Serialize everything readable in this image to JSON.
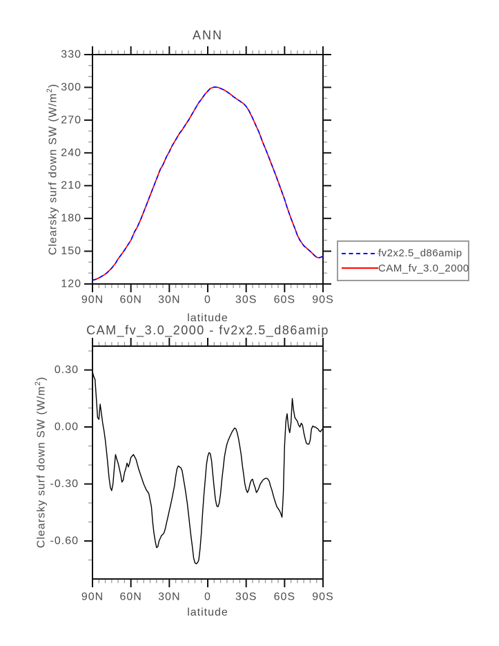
{
  "page": {
    "background": "#ffffff"
  },
  "colors": {
    "frame": "#111111",
    "major_tick": "#111111",
    "minor_tick": "#999999",
    "text": "#4d4d4d",
    "series_fv2x25": "#0000ff",
    "series_cam": "#ff0000",
    "difference_line": "#000000",
    "legend_border": "#9a9a9a"
  },
  "labels": {
    "ylabel_prefix": "Clearsky surf down SW (W/m",
    "ylabel_sup": "2",
    "ylabel_suffix": ")"
  },
  "legend": {
    "items": [
      {
        "label": "fv2x2.5_d86amip",
        "color": "#0000ff",
        "style": "dashed"
      },
      {
        "label": "CAM_fv_3.0_2000",
        "color": "#ff0000",
        "style": "solid"
      }
    ]
  },
  "chart_data": [
    {
      "type": "line",
      "title": "ANN",
      "xlabel": "latitude",
      "ylabel": "Clearsky surf down SW (W/m2)",
      "legend_position": "outside right, below plot middle",
      "grid": false,
      "x_axis": {
        "orientation": "90N at left, 90S at right",
        "tick_values": [
          90,
          60,
          30,
          0,
          -30,
          -60,
          -90
        ],
        "tick_labels": [
          "90N",
          "60N",
          "30N",
          "0",
          "30S",
          "60S",
          "90S"
        ],
        "minor_step_deg": 5
      },
      "y_axis": {
        "range": [
          120,
          330
        ],
        "tick_values": [
          330,
          300,
          270,
          240,
          210,
          180,
          150,
          120
        ],
        "tick_labels": [
          "330",
          "300",
          "270",
          "240",
          "210",
          "180",
          "150",
          "120"
        ],
        "minor_step": 10
      },
      "x": [
        90,
        88,
        85,
        82,
        80,
        78,
        75,
        72,
        70,
        68,
        65,
        62,
        60,
        57,
        55,
        52,
        50,
        47,
        45,
        42,
        40,
        37,
        35,
        32,
        30,
        28,
        25,
        22,
        20,
        17,
        15,
        12,
        10,
        7,
        5,
        2,
        0,
        -2,
        -5,
        -8,
        -10,
        -13,
        -15,
        -18,
        -20,
        -23,
        -25,
        -28,
        -30,
        -32,
        -35,
        -38,
        -40,
        -43,
        -45,
        -48,
        -50,
        -53,
        -55,
        -58,
        -60,
        -62,
        -65,
        -68,
        -70,
        -72,
        -75,
        -78,
        -80,
        -83,
        -85,
        -87,
        -89,
        -90
      ],
      "series": [
        {
          "name": "fv2x2.5_d86amip",
          "color": "#0000ff",
          "style": "dashed",
          "values": [
            123.5,
            124,
            125.5,
            127.5,
            129,
            131,
            134.5,
            139,
            143,
            146,
            151,
            156.5,
            160,
            168,
            172,
            180,
            186,
            195,
            201,
            210,
            216,
            225,
            229,
            237,
            241,
            246,
            252,
            258,
            261,
            266.5,
            270,
            276,
            280,
            286,
            289,
            294,
            296.5,
            299,
            300.3,
            300,
            299,
            297.5,
            296,
            293.5,
            291.5,
            289,
            287.5,
            285,
            282.5,
            279,
            272,
            264,
            259,
            249.5,
            244,
            235,
            229,
            220,
            213.5,
            204,
            197.5,
            190,
            180,
            171,
            164.5,
            160,
            155,
            152,
            150,
            146.5,
            144.5,
            144,
            144.8,
            145.5
          ]
        },
        {
          "name": "CAM_fv_3.0_2000",
          "color": "#ff0000",
          "style": "solid",
          "values": [
            123.5,
            124,
            125.5,
            127.5,
            129,
            131,
            134.5,
            139,
            143,
            146,
            151,
            156.5,
            160,
            168,
            172,
            180,
            186,
            195,
            201,
            210,
            216,
            225,
            229,
            237,
            241,
            246,
            252,
            258,
            261,
            266.5,
            270,
            276,
            280,
            286,
            289,
            294,
            296.5,
            299,
            300.3,
            300,
            299,
            297.5,
            296,
            293.5,
            291.5,
            289,
            287.5,
            285,
            282.5,
            279,
            272,
            264,
            259,
            249.5,
            244,
            235,
            229,
            220,
            213.5,
            204,
            197.5,
            190,
            180,
            171,
            164.5,
            160,
            155,
            152,
            150,
            146.5,
            144.5,
            144,
            144.8,
            145.5
          ]
        }
      ]
    },
    {
      "type": "line",
      "title": "CAM_fv_3.0_2000 - fv2x2.5_d86amip",
      "xlabel": "latitude",
      "ylabel": "Clearsky surf down SW (W/m2)",
      "grid": false,
      "x_axis": {
        "orientation": "90N at left, 90S at right",
        "tick_values": [
          90,
          60,
          30,
          0,
          -30,
          -60,
          -90
        ],
        "tick_labels": [
          "90N",
          "60N",
          "30N",
          "0",
          "30S",
          "60S",
          "90S"
        ],
        "minor_step_deg": 5
      },
      "y_axis": {
        "range_shown": [
          -0.8,
          0.43
        ],
        "tick_values": [
          0.3,
          0.0,
          -0.3,
          -0.6
        ],
        "tick_labels": [
          "0.30",
          "0.00",
          "-0.30",
          "-0.60"
        ],
        "minor_step": 0.1
      },
      "x": [
        90,
        89,
        88,
        87,
        86,
        85,
        84,
        83,
        82,
        81,
        80,
        79,
        78,
        77,
        76,
        75,
        74,
        73,
        72,
        71,
        70,
        69,
        68,
        67,
        66,
        65,
        64,
        63,
        62,
        61,
        60,
        58,
        56,
        54,
        52,
        50,
        48,
        46,
        44,
        43,
        42,
        41,
        40,
        39,
        38,
        37,
        36,
        35,
        34,
        33,
        32,
        31,
        30,
        29,
        28,
        27,
        26,
        25,
        24,
        23,
        22,
        21,
        20,
        19,
        18,
        17,
        16,
        15,
        14,
        13,
        12,
        11,
        10,
        9,
        8,
        7,
        6,
        5,
        4,
        3,
        2,
        1,
        0,
        -1,
        -2,
        -3,
        -4,
        -5,
        -6,
        -7,
        -8,
        -9,
        -10,
        -11,
        -12,
        -13,
        -14,
        -15,
        -16,
        -17,
        -18,
        -19,
        -20,
        -21,
        -22,
        -23,
        -24,
        -25,
        -26,
        -27,
        -28,
        -29,
        -30,
        -31,
        -32,
        -33,
        -34,
        -35,
        -36,
        -37,
        -38,
        -39,
        -40,
        -41,
        -42,
        -43,
        -44,
        -45,
        -46,
        -47,
        -48,
        -49,
        -50,
        -51,
        -52,
        -53,
        -54,
        -55,
        -56,
        -57,
        -58,
        -59,
        -60,
        -61,
        -62,
        -63,
        -64,
        -65,
        -66,
        -67,
        -68,
        -69,
        -70,
        -71,
        -72,
        -73,
        -74,
        -75,
        -76,
        -77,
        -78,
        -79,
        -80,
        -81,
        -82,
        -83,
        -84,
        -85,
        -86,
        -87,
        -88,
        -89,
        -90
      ],
      "series": [
        {
          "name": "CAM_fv_3.0_2000 minus fv2x2.5_d86amip",
          "color": "#000000",
          "style": "solid",
          "values": [
            0.29,
            0.265,
            0.25,
            0.15,
            0.05,
            0.04,
            0.12,
            0.07,
            0.02,
            -0.02,
            -0.07,
            -0.13,
            -0.2,
            -0.27,
            -0.32,
            -0.335,
            -0.3,
            -0.22,
            -0.145,
            -0.17,
            -0.19,
            -0.22,
            -0.25,
            -0.29,
            -0.28,
            -0.24,
            -0.22,
            -0.19,
            -0.21,
            -0.19,
            -0.16,
            -0.145,
            -0.17,
            -0.22,
            -0.26,
            -0.3,
            -0.33,
            -0.35,
            -0.42,
            -0.5,
            -0.56,
            -0.6,
            -0.635,
            -0.63,
            -0.6,
            -0.585,
            -0.57,
            -0.565,
            -0.555,
            -0.53,
            -0.5,
            -0.47,
            -0.44,
            -0.41,
            -0.38,
            -0.345,
            -0.31,
            -0.26,
            -0.22,
            -0.205,
            -0.21,
            -0.215,
            -0.23,
            -0.27,
            -0.31,
            -0.355,
            -0.4,
            -0.46,
            -0.52,
            -0.58,
            -0.63,
            -0.69,
            -0.715,
            -0.72,
            -0.715,
            -0.7,
            -0.64,
            -0.56,
            -0.45,
            -0.36,
            -0.28,
            -0.2,
            -0.155,
            -0.135,
            -0.14,
            -0.18,
            -0.25,
            -0.32,
            -0.38,
            -0.415,
            -0.42,
            -0.4,
            -0.35,
            -0.28,
            -0.22,
            -0.16,
            -0.12,
            -0.09,
            -0.07,
            -0.055,
            -0.04,
            -0.025,
            -0.015,
            -0.005,
            -0.01,
            -0.03,
            -0.06,
            -0.1,
            -0.14,
            -0.2,
            -0.25,
            -0.3,
            -0.33,
            -0.345,
            -0.33,
            -0.3,
            -0.28,
            -0.275,
            -0.3,
            -0.32,
            -0.345,
            -0.335,
            -0.32,
            -0.3,
            -0.29,
            -0.28,
            -0.275,
            -0.27,
            -0.27,
            -0.275,
            -0.285,
            -0.31,
            -0.33,
            -0.355,
            -0.38,
            -0.4,
            -0.42,
            -0.43,
            -0.44,
            -0.455,
            -0.475,
            -0.35,
            -0.1,
            0.03,
            0.07,
            0.0,
            -0.03,
            0.02,
            0.15,
            0.09,
            0.05,
            0.04,
            0.03,
            0.01,
            0.0,
            0.02,
            0.01,
            -0.03,
            -0.06,
            -0.085,
            -0.09,
            -0.09,
            -0.07,
            -0.01,
            0.005,
            0.0,
            0.0,
            -0.005,
            -0.01,
            -0.02,
            -0.025,
            -0.015,
            -0.01
          ]
        }
      ]
    }
  ]
}
